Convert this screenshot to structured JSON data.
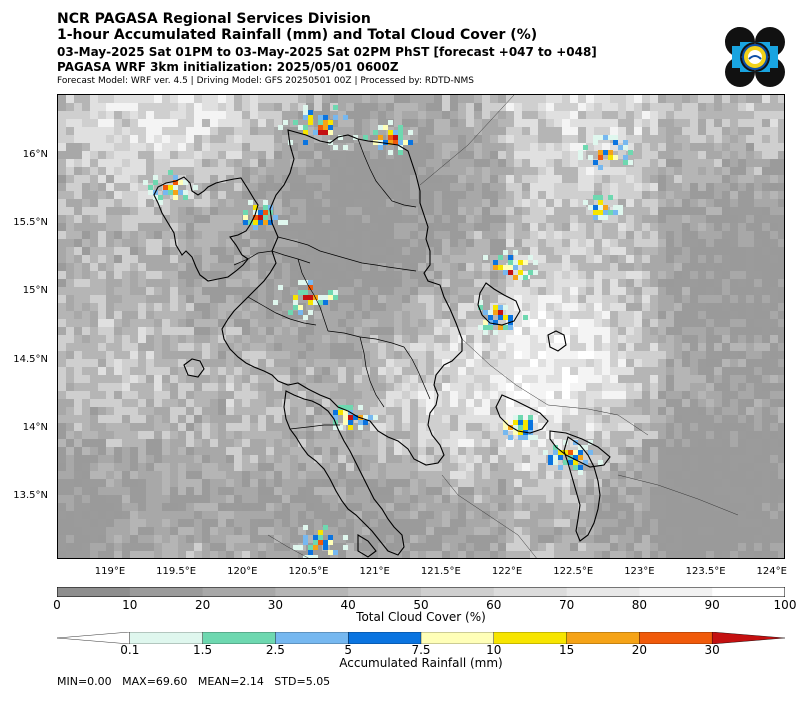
{
  "header": {
    "title": "NCR PAGASA Regional Services Division",
    "subtitle": "1-hour Accumulated Rainfall (mm) and Total Cloud Cover (%)",
    "valid_time": "03-May-2025 Sat 01PM to 03-May-2025 Sat 02PM PhST [forecast +047 to +048]",
    "init": "PAGASA WRF 3km initialization: 2025/05/01 0600Z",
    "model_info": "Forecast Model: WRF ver. 4.5 | Driving Model: GFS 20250501 00Z | Processed by: RDTD-NMS"
  },
  "map": {
    "lat_labels": [
      "16°N",
      "15.5°N",
      "15°N",
      "14.5°N",
      "14°N",
      "13.5°N"
    ],
    "lon_labels": [
      "119°E",
      "119.5°E",
      "120°E",
      "120.5°E",
      "121°E",
      "121.5°E",
      "122°E",
      "122.5°E",
      "123°E",
      "123.5°E",
      "124°E"
    ],
    "lat_values": [
      16,
      15.5,
      15,
      14.5,
      14,
      13.5
    ],
    "lon_values": [
      119,
      119.5,
      120,
      120.5,
      121,
      121.5,
      122,
      122.5,
      123,
      123.5,
      124
    ],
    "extent": {
      "lon_min": 118.6,
      "lon_max": 124.1,
      "lat_min": 13.05,
      "lat_max": 16.45
    }
  },
  "cloud_colorbar": {
    "title": "Total Cloud Cover (%)",
    "ticks": [
      "0",
      "10",
      "20",
      "30",
      "40",
      "50",
      "60",
      "70",
      "80",
      "90",
      "100"
    ],
    "colors": [
      "#8e8e8e",
      "#9b9b9b",
      "#a8a8a8",
      "#b5b5b5",
      "#c2c2c2",
      "#cfcfcf",
      "#dcdcdc",
      "#e8e8e8",
      "#f2f2f2",
      "#ffffff"
    ]
  },
  "rain_colorbar": {
    "title": "Accumulated Rainfall (mm)",
    "ticks": [
      "0.1",
      "1.5",
      "2.5",
      "5",
      "7.5",
      "10",
      "15",
      "20",
      "30"
    ],
    "colors": [
      "#ffffff",
      "#dff7ee",
      "#6ed8b0",
      "#76b8f0",
      "#0a74e0",
      "#ffffb8",
      "#f7e500",
      "#f5a317",
      "#f05a0a",
      "#c41010"
    ]
  },
  "stats": "MIN=0.00   MAX=69.60   MEAN=2.14   STD=5.05"
}
